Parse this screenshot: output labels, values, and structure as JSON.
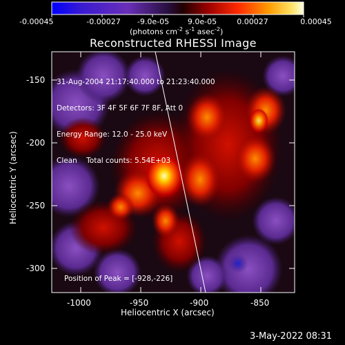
{
  "colorbar": {
    "labels": [
      "-0.00045",
      "-0.00027",
      "-9.0e-05",
      "9.0e-05",
      "0.00027",
      "0.00045"
    ],
    "units": "(photons cm",
    "units_exp1": "-2",
    "units_mid": " s",
    "units_exp2": "-1",
    "units_end": " asec",
    "units_exp3": "-2",
    "units_close": ")"
  },
  "title": "Reconstructed RHESSI Image",
  "info": {
    "time_range": "31-Aug-2004 21:17:40.000 to 21:23:40.000",
    "detectors": "Detectors: 3F 4F 5F 6F 7F 8F, Att 0",
    "energy": "Energy Range: 12.0 - 25.0 keV",
    "clean": "Clean    Total counts: 5.54E+03"
  },
  "peak": "Position of Peak = [-928,-226]",
  "x_axis": {
    "label": "Heliocentric X (arcsec)",
    "ticks": [
      "-1000",
      "-950",
      "-900",
      "-850"
    ],
    "range": [
      -1020,
      -828
    ]
  },
  "y_axis": {
    "label": "Heliocentric Y (arcsec)",
    "ticks": [
      "-150",
      "-200",
      "-250",
      "-300"
    ],
    "range": [
      -320,
      -128
    ]
  },
  "date_stamp": "3-May-2022 08:31",
  "colors": {
    "background": "#000000",
    "foreground": "#ffffff",
    "colormap": [
      "#0000ff",
      "#4b1bc8",
      "#7b3fae",
      "#231040",
      "#3a0000",
      "#a80000",
      "#ff3000",
      "#ff8a00",
      "#ffd000",
      "#ffffb8"
    ]
  }
}
